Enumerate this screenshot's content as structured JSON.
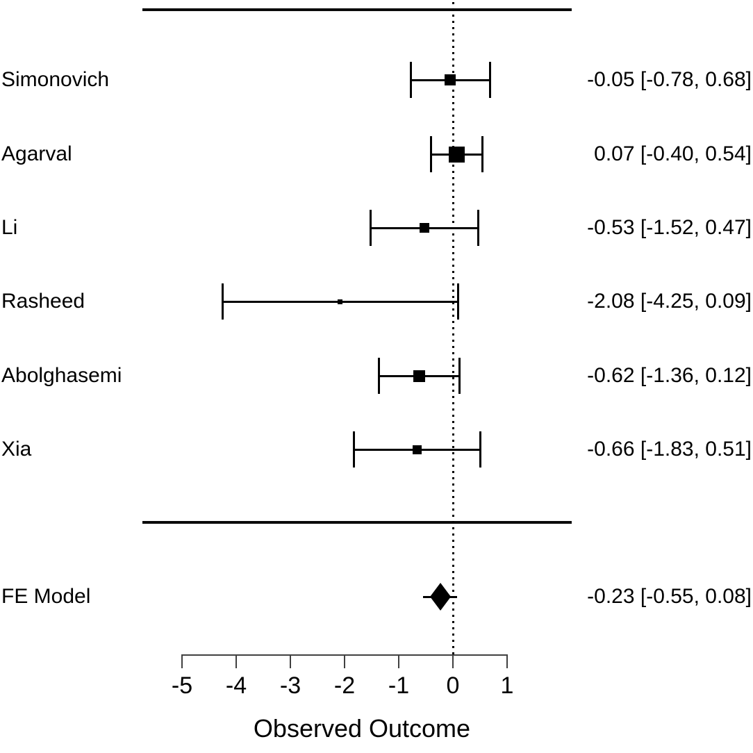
{
  "colors": {
    "foreground": "#000000",
    "background": "#ffffff",
    "axis": "#404040"
  },
  "chart_data": {
    "type": "forest",
    "title": "",
    "xlabel": "Observed Outcome",
    "xlim": [
      -5,
      1
    ],
    "x_ticks": [
      "-5",
      "-4",
      "-3",
      "-2",
      "-1",
      "0",
      "1"
    ],
    "x_tick_values": [
      -5,
      -4,
      -3,
      -2,
      -1,
      0,
      1
    ],
    "zero_reference": 0,
    "grid": false,
    "studies": [
      {
        "label": "Simonovich",
        "estimate": -0.05,
        "ci_lower": -0.78,
        "ci_upper": 0.68,
        "annotation": "-0.05 [-0.78, 0.68]",
        "marker_size": 16
      },
      {
        "label": "Agarval",
        "estimate": 0.07,
        "ci_lower": -0.4,
        "ci_upper": 0.54,
        "annotation": "0.07 [-0.40, 0.54]",
        "marker_size": 23
      },
      {
        "label": "Li",
        "estimate": -0.53,
        "ci_lower": -1.52,
        "ci_upper": 0.47,
        "annotation": "-0.53 [-1.52, 0.47]",
        "marker_size": 14
      },
      {
        "label": "Rasheed",
        "estimate": -2.08,
        "ci_lower": -4.25,
        "ci_upper": 0.09,
        "annotation": "-2.08 [-4.25, 0.09]",
        "marker_size": 7
      },
      {
        "label": "Abolghasemi",
        "estimate": -0.62,
        "ci_lower": -1.36,
        "ci_upper": 0.12,
        "annotation": "-0.62 [-1.36, 0.12]",
        "marker_size": 17
      },
      {
        "label": "Xia",
        "estimate": -0.66,
        "ci_lower": -1.83,
        "ci_upper": 0.51,
        "annotation": "-0.66 [-1.83, 0.51]",
        "marker_size": 13
      }
    ],
    "summary": {
      "label": "FE Model",
      "estimate": -0.23,
      "ci_lower": -0.55,
      "ci_upper": 0.08,
      "annotation": "-0.23 [-0.55, 0.08]"
    }
  }
}
